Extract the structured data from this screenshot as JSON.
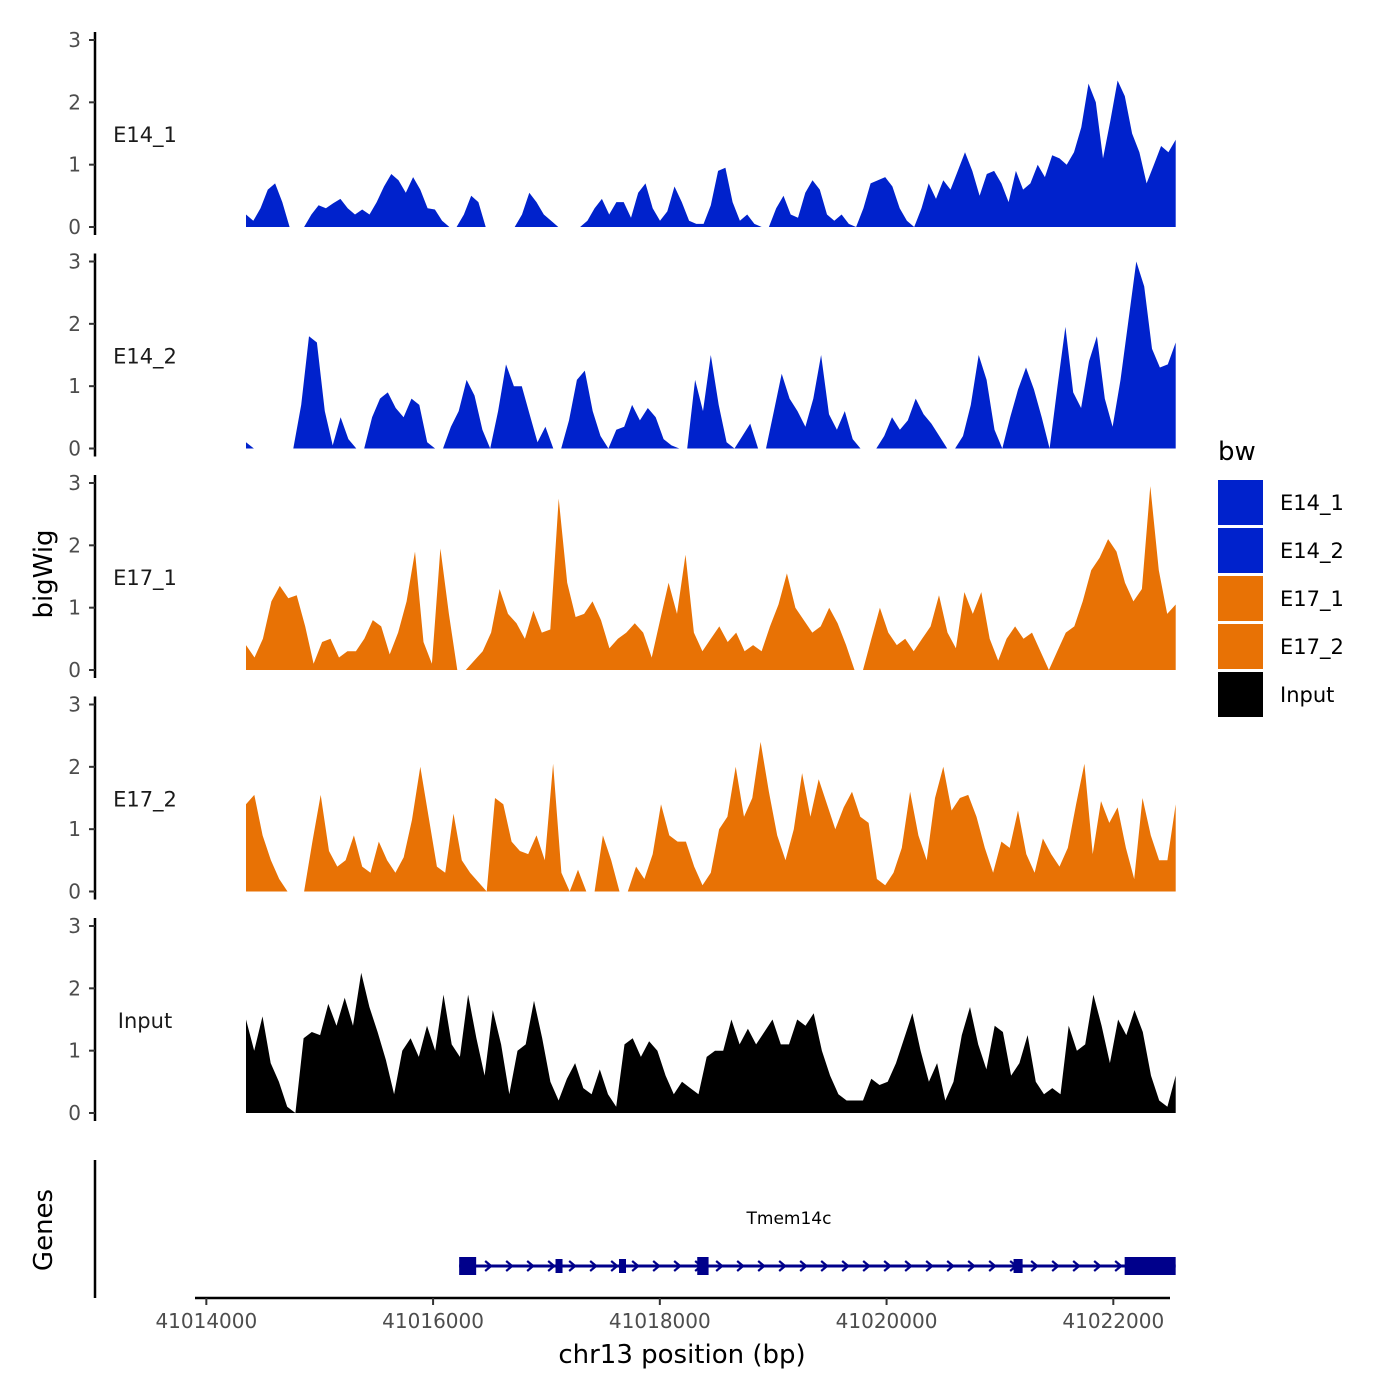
{
  "chart_data": {
    "type": "area",
    "chromosome": "chr13",
    "xlabel": "chr13 position (bp)",
    "ylabel": "bigWig",
    "genes_label": "Genes",
    "xlim": [
      41013900,
      41022500
    ],
    "ylim": [
      0,
      3
    ],
    "x_ticks": [
      41014000,
      41016000,
      41018000,
      41020000,
      41022000
    ],
    "x_tick_labels": [
      "41014000",
      "41016000",
      "41018000",
      "41020000",
      "41022000"
    ],
    "y_ticks": [
      0,
      1,
      2,
      3
    ],
    "y_tick_labels": [
      "0",
      "1",
      "2",
      "3"
    ],
    "signal_range": [
      41014350,
      41022550
    ],
    "legend": {
      "title": "bw",
      "entries": [
        {
          "name": "E14_1",
          "color": "#0022cc"
        },
        {
          "name": "E14_2",
          "color": "#0022cc"
        },
        {
          "name": "E17_1",
          "color": "#e87205"
        },
        {
          "name": "E17_2",
          "color": "#e87205"
        },
        {
          "name": "Input",
          "color": "#000000"
        }
      ]
    },
    "series": [
      {
        "name": "E14_1",
        "color": "#0022cc",
        "values": [
          0.2,
          0.1,
          0.3,
          0.6,
          0.7,
          0.4,
          0,
          0,
          0,
          0.2,
          0.35,
          0.3,
          0.38,
          0.45,
          0.3,
          0.2,
          0.28,
          0.2,
          0.4,
          0.65,
          0.85,
          0.75,
          0.55,
          0.8,
          0.6,
          0.3,
          0.28,
          0.1,
          0,
          0,
          0.2,
          0.5,
          0.4,
          0,
          0,
          0,
          0,
          0,
          0.2,
          0.55,
          0.4,
          0.2,
          0.1,
          0,
          0,
          0,
          0,
          0.1,
          0.3,
          0.45,
          0.2,
          0.4,
          0.4,
          0.15,
          0.55,
          0.7,
          0.3,
          0.1,
          0.25,
          0.65,
          0.4,
          0.1,
          0.05,
          0.05,
          0.35,
          0.9,
          0.95,
          0.4,
          0.1,
          0.2,
          0.05,
          0,
          0,
          0.3,
          0.5,
          0.2,
          0.15,
          0.55,
          0.75,
          0.6,
          0.2,
          0.1,
          0.2,
          0.05,
          0,
          0.3,
          0.7,
          0.75,
          0.8,
          0.65,
          0.3,
          0.1,
          0,
          0.3,
          0.7,
          0.45,
          0.75,
          0.6,
          0.9,
          1.2,
          0.9,
          0.5,
          0.85,
          0.9,
          0.7,
          0.4,
          0.9,
          0.6,
          0.7,
          1.0,
          0.8,
          1.15,
          1.1,
          1.0,
          1.2,
          1.6,
          2.3,
          2.0,
          1.1,
          1.7,
          2.35,
          2.1,
          1.5,
          1.2,
          0.7,
          1.0,
          1.3,
          1.2,
          1.4
        ]
      },
      {
        "name": "E14_2",
        "color": "#0022cc",
        "values": [
          0.1,
          0,
          0,
          0,
          0,
          0,
          0,
          0.7,
          1.8,
          1.7,
          0.6,
          0.05,
          0.5,
          0.15,
          0,
          0,
          0.5,
          0.8,
          0.9,
          0.65,
          0.5,
          0.8,
          0.7,
          0.1,
          0,
          0,
          0.35,
          0.6,
          1.1,
          0.85,
          0.3,
          0,
          0.6,
          1.35,
          1.0,
          1.0,
          0.55,
          0.1,
          0.35,
          0,
          0,
          0.45,
          1.1,
          1.25,
          0.6,
          0.2,
          0,
          0.3,
          0.35,
          0.7,
          0.45,
          0.65,
          0.5,
          0.15,
          0.05,
          0,
          0,
          1.1,
          0.6,
          1.5,
          0.7,
          0.1,
          0,
          0.2,
          0.4,
          0,
          0,
          0.6,
          1.2,
          0.8,
          0.6,
          0.35,
          0.8,
          1.5,
          0.55,
          0.3,
          0.6,
          0.15,
          0,
          0,
          0,
          0.2,
          0.5,
          0.3,
          0.45,
          0.8,
          0.55,
          0.4,
          0.2,
          0,
          0,
          0.2,
          0.7,
          1.5,
          1.1,
          0.3,
          0,
          0.5,
          0.95,
          1.3,
          0.95,
          0.5,
          0,
          1.0,
          1.95,
          0.9,
          0.65,
          1.4,
          1.8,
          0.8,
          0.35,
          1.1,
          2.05,
          3.0,
          2.6,
          1.6,
          1.3,
          1.35,
          1.7
        ]
      },
      {
        "name": "E17_1",
        "color": "#e87205",
        "values": [
          0.4,
          0.2,
          0.5,
          1.1,
          1.35,
          1.15,
          1.2,
          0.7,
          0.1,
          0.45,
          0.5,
          0.2,
          0.3,
          0.3,
          0.5,
          0.8,
          0.7,
          0.25,
          0.6,
          1.1,
          1.9,
          0.45,
          0.1,
          1.95,
          0.9,
          0,
          0,
          0.15,
          0.3,
          0.6,
          1.3,
          0.9,
          0.75,
          0.5,
          0.95,
          0.6,
          0.65,
          2.75,
          1.4,
          0.85,
          0.9,
          1.1,
          0.8,
          0.35,
          0.5,
          0.6,
          0.75,
          0.6,
          0.2,
          0.8,
          1.4,
          0.9,
          1.85,
          0.6,
          0.3,
          0.5,
          0.7,
          0.45,
          0.6,
          0.3,
          0.4,
          0.3,
          0.7,
          1.05,
          1.55,
          1.0,
          0.8,
          0.6,
          0.7,
          1.0,
          0.75,
          0.4,
          0,
          0,
          0.5,
          1.0,
          0.6,
          0.4,
          0.5,
          0.3,
          0.5,
          0.7,
          1.2,
          0.6,
          0.35,
          1.25,
          0.9,
          1.25,
          0.5,
          0.15,
          0.5,
          0.7,
          0.5,
          0.6,
          0.3,
          0,
          0.3,
          0.6,
          0.7,
          1.1,
          1.6,
          1.8,
          2.1,
          1.9,
          1.4,
          1.1,
          1.3,
          2.95,
          1.6,
          0.9,
          1.05
        ]
      },
      {
        "name": "E17_2",
        "color": "#e87205",
        "values": [
          1.4,
          1.55,
          0.9,
          0.5,
          0.2,
          0,
          0,
          0,
          0.8,
          1.55,
          0.65,
          0.4,
          0.5,
          0.9,
          0.4,
          0.3,
          0.8,
          0.5,
          0.3,
          0.55,
          1.15,
          2.0,
          1.2,
          0.4,
          0.3,
          1.25,
          0.5,
          0.3,
          0.15,
          0,
          1.5,
          1.4,
          0.8,
          0.65,
          0.6,
          0.9,
          0.5,
          2.05,
          0.3,
          0,
          0.35,
          0,
          0,
          0.9,
          0.5,
          0,
          0,
          0.4,
          0.2,
          0.6,
          1.4,
          0.9,
          0.8,
          0.8,
          0.4,
          0.1,
          0.3,
          1.0,
          1.2,
          2.0,
          1.2,
          1.5,
          2.4,
          1.6,
          0.9,
          0.5,
          1.0,
          1.9,
          1.2,
          1.8,
          1.4,
          1.0,
          1.35,
          1.6,
          1.2,
          1.1,
          0.2,
          0.1,
          0.3,
          0.7,
          1.6,
          0.9,
          0.5,
          1.5,
          2.0,
          1.3,
          1.5,
          1.55,
          1.2,
          0.7,
          0.3,
          0.8,
          0.7,
          1.3,
          0.6,
          0.3,
          0.85,
          0.6,
          0.4,
          0.7,
          1.4,
          2.05,
          0.6,
          1.45,
          1.1,
          1.35,
          0.7,
          0.2,
          1.5,
          0.9,
          0.5,
          0.5,
          1.4
        ]
      },
      {
        "name": "Input",
        "color": "#000000",
        "values": [
          1.5,
          1.0,
          1.55,
          0.8,
          0.5,
          0.1,
          0,
          1.2,
          1.3,
          1.25,
          1.75,
          1.4,
          1.85,
          1.4,
          2.25,
          1.7,
          1.3,
          0.85,
          0.3,
          1.0,
          1.2,
          0.9,
          1.4,
          1.0,
          1.9,
          1.1,
          0.9,
          1.9,
          1.2,
          0.6,
          1.65,
          1.1,
          0.3,
          1.0,
          1.1,
          1.8,
          1.2,
          0.5,
          0.2,
          0.55,
          0.8,
          0.4,
          0.3,
          0.7,
          0.3,
          0.1,
          1.1,
          1.2,
          0.9,
          1.15,
          1.0,
          0.6,
          0.3,
          0.5,
          0.4,
          0.3,
          0.9,
          1.0,
          1.0,
          1.5,
          1.1,
          1.35,
          1.1,
          1.3,
          1.5,
          1.1,
          1.1,
          1.5,
          1.4,
          1.6,
          1.0,
          0.6,
          0.3,
          0.2,
          0.2,
          0.2,
          0.55,
          0.45,
          0.5,
          0.8,
          1.2,
          1.6,
          1.0,
          0.5,
          0.8,
          0.2,
          0.5,
          1.25,
          1.7,
          1.1,
          0.7,
          1.4,
          1.3,
          0.6,
          0.8,
          1.25,
          0.5,
          0.3,
          0.4,
          0.3,
          1.4,
          1.0,
          1.1,
          1.9,
          1.4,
          0.8,
          1.5,
          1.25,
          1.65,
          1.3,
          0.6,
          0.2,
          0.1,
          0.6
        ]
      }
    ],
    "gene": {
      "name": "Tmem14c",
      "start": 41016230,
      "end": 41022550,
      "strand": "+",
      "color": "#00008b",
      "exons": [
        {
          "start": 41016230,
          "end": 41016380,
          "height": "large"
        },
        {
          "start": 41017080,
          "end": 41017140,
          "height": "small"
        },
        {
          "start": 41017640,
          "end": 41017700,
          "height": "small"
        },
        {
          "start": 41018330,
          "end": 41018430,
          "height": "large"
        },
        {
          "start": 41021120,
          "end": 41021200,
          "height": "small"
        },
        {
          "start": 41022100,
          "end": 41022550,
          "height": "large"
        }
      ]
    }
  }
}
